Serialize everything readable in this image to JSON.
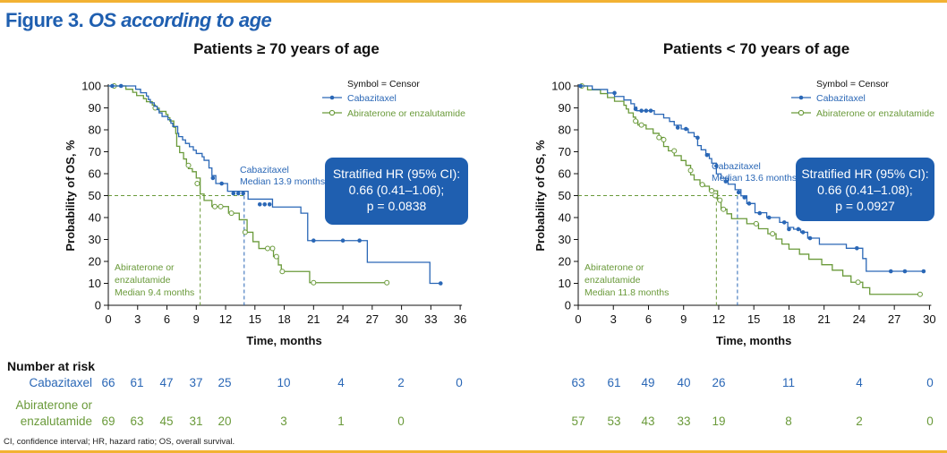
{
  "figure": {
    "label": "Figure 3.",
    "title": "OS according to age",
    "footnote": "CI, confidence interval; HR, hazard ratio; OS, overall survival."
  },
  "colors": {
    "cabazitaxel": "#2a67b6",
    "abiraterone": "#6a9a3a",
    "title": "#1f5fb0",
    "hr_box": "#1f5fb0",
    "rule": "#f2b233"
  },
  "risk_table": {
    "heading": "Number at risk",
    "row_labels": [
      "Cabazitaxel",
      "Abiraterone or",
      "enzalutamide"
    ]
  },
  "chart_data": [
    {
      "type": "line",
      "title": "Patients ≥ 70 years of age",
      "xlabel": "Time, months",
      "ylabel": "Probability of OS, %",
      "xlim": [
        0,
        36
      ],
      "ylim": [
        0,
        100
      ],
      "xticks": [
        0,
        3,
        6,
        9,
        12,
        15,
        18,
        21,
        24,
        27,
        30,
        33,
        36
      ],
      "yticks": [
        0,
        10,
        20,
        30,
        40,
        50,
        60,
        70,
        80,
        90,
        100
      ],
      "legend": {
        "title": "Symbol = Censor",
        "position": "top-right"
      },
      "series": [
        {
          "name": "Cabazitaxel",
          "steps": [
            [
              0,
              100
            ],
            [
              2.8,
              98.5
            ],
            [
              3.3,
              96.9
            ],
            [
              3.9,
              95.4
            ],
            [
              4.1,
              93.8
            ],
            [
              4.3,
              92.3
            ],
            [
              4.7,
              90.7
            ],
            [
              5.0,
              89.2
            ],
            [
              5.2,
              87.7
            ],
            [
              5.5,
              86.1
            ],
            [
              6.1,
              84.6
            ],
            [
              6.4,
              83.0
            ],
            [
              6.6,
              81.5
            ],
            [
              7.1,
              78.4
            ],
            [
              7.2,
              76.9
            ],
            [
              7.6,
              75.4
            ],
            [
              7.9,
              73.8
            ],
            [
              8.3,
              72.3
            ],
            [
              8.7,
              70.7
            ],
            [
              9.0,
              69.2
            ],
            [
              9.6,
              67.7
            ],
            [
              9.8,
              66.1
            ],
            [
              10.3,
              62.6
            ],
            [
              10.6,
              59.1
            ],
            [
              11.0,
              55.5
            ],
            [
              12.2,
              52.0
            ],
            [
              14.3,
              48.4
            ],
            [
              16.8,
              44.8
            ],
            [
              19.7,
              42.0
            ],
            [
              20.4,
              29.5
            ],
            [
              26.5,
              19.6
            ],
            [
              32.9,
              10.0
            ]
          ],
          "end": 34.0,
          "censor": [
            [
              0.4,
              100
            ],
            [
              1.3,
              100
            ],
            [
              10.7,
              58
            ],
            [
              11.6,
              55.5
            ],
            [
              12.8,
              51
            ],
            [
              13.3,
              51
            ],
            [
              13.8,
              51
            ],
            [
              15.5,
              46
            ],
            [
              16.0,
              46
            ],
            [
              16.5,
              46
            ],
            [
              21.0,
              29.5
            ],
            [
              24.0,
              29.5
            ],
            [
              25.7,
              29.5
            ],
            [
              34.0,
              10
            ]
          ],
          "median_label": [
            "Cabazitaxel",
            "Median 13.9 months"
          ],
          "median": 13.9,
          "at_risk": [
            66,
            61,
            47,
            37,
            25,
            10,
            4,
            2,
            0
          ],
          "at_risk_times": [
            0,
            3,
            6,
            9,
            12,
            18,
            24,
            30,
            36
          ]
        },
        {
          "name": "Abiraterone or enzalutamide",
          "steps": [
            [
              0,
              100
            ],
            [
              1.8,
              98.5
            ],
            [
              2.5,
              97.1
            ],
            [
              2.9,
              95.6
            ],
            [
              3.6,
              94.2
            ],
            [
              3.9,
              92.8
            ],
            [
              4.5,
              91.3
            ],
            [
              4.8,
              89.9
            ],
            [
              5.2,
              88.4
            ],
            [
              5.9,
              87.0
            ],
            [
              6.1,
              85.5
            ],
            [
              6.3,
              84.0
            ],
            [
              6.7,
              81.2
            ],
            [
              6.9,
              78.3
            ],
            [
              7.0,
              72.5
            ],
            [
              7.3,
              69.6
            ],
            [
              7.7,
              66.7
            ],
            [
              8.0,
              63.8
            ],
            [
              8.2,
              62.3
            ],
            [
              8.6,
              60.9
            ],
            [
              9.0,
              58.0
            ],
            [
              9.4,
              50.7
            ],
            [
              9.8,
              47.8
            ],
            [
              10.6,
              45.0
            ],
            [
              12.3,
              42.0
            ],
            [
              13.4,
              39.0
            ],
            [
              14.2,
              33.3
            ],
            [
              14.8,
              29.0
            ],
            [
              15.4,
              25.9
            ],
            [
              16.9,
              22.2
            ],
            [
              17.4,
              18.4
            ],
            [
              17.7,
              15.4
            ],
            [
              20.6,
              10.3
            ]
          ],
          "end": 28.5,
          "censor": [
            [
              0.6,
              100
            ],
            [
              4.8,
              90
            ],
            [
              8.2,
              63.8
            ],
            [
              9.1,
              55.5
            ],
            [
              10.9,
              45
            ],
            [
              11.5,
              45
            ],
            [
              12.6,
              42
            ],
            [
              14.0,
              33.3
            ],
            [
              16.3,
              25.9
            ],
            [
              16.8,
              25.9
            ],
            [
              17.2,
              22.2
            ],
            [
              17.8,
              15.4
            ],
            [
              21.0,
              10.3
            ],
            [
              28.5,
              10.3
            ]
          ],
          "median_label": [
            "Abiraterone or",
            "enzalutamide",
            "Median 9.4 months"
          ],
          "median": 9.4,
          "at_risk": [
            69,
            63,
            45,
            31,
            20,
            3,
            1,
            0
          ],
          "at_risk_times": [
            0,
            3,
            6,
            9,
            12,
            18,
            24,
            30
          ]
        }
      ],
      "hr_box": [
        "Stratified HR (95% CI):",
        "0.66 (0.41–1.06);",
        "p = 0.0838"
      ]
    },
    {
      "type": "line",
      "title": "Patients < 70 years of age",
      "xlabel": "Time, months",
      "ylabel": "Probability of OS, %",
      "xlim": [
        0,
        30
      ],
      "ylim": [
        0,
        100
      ],
      "xticks": [
        0,
        3,
        6,
        9,
        12,
        15,
        18,
        21,
        24,
        27,
        30
      ],
      "yticks": [
        0,
        10,
        20,
        30,
        40,
        50,
        60,
        70,
        80,
        90,
        100
      ],
      "legend": {
        "title": "Symbol = Censor",
        "position": "top-right"
      },
      "series": [
        {
          "name": "Cabazitaxel",
          "steps": [
            [
              0,
              100
            ],
            [
              1.2,
              98.4
            ],
            [
              2.5,
              96.8
            ],
            [
              3.1,
              95.2
            ],
            [
              3.9,
              93.6
            ],
            [
              4.5,
              91.9
            ],
            [
              4.8,
              90.3
            ],
            [
              5.0,
              88.7
            ],
            [
              6.5,
              87.1
            ],
            [
              7.3,
              85.4
            ],
            [
              7.8,
              83.8
            ],
            [
              8.2,
              82.1
            ],
            [
              8.8,
              80.4
            ],
            [
              9.4,
              78.7
            ],
            [
              9.9,
              76.9
            ],
            [
              10.2,
              72.8
            ],
            [
              10.5,
              70.9
            ],
            [
              10.9,
              69.0
            ],
            [
              11.2,
              66.9
            ],
            [
              11.4,
              64.8
            ],
            [
              11.8,
              59.9
            ],
            [
              12.2,
              57.9
            ],
            [
              12.8,
              55.2
            ],
            [
              13.4,
              52.7
            ],
            [
              13.9,
              49.9
            ],
            [
              14.4,
              46.4
            ],
            [
              15.1,
              42.2
            ],
            [
              16.1,
              40.0
            ],
            [
              17.2,
              37.8
            ],
            [
              17.9,
              35.5
            ],
            [
              18.4,
              34.7
            ],
            [
              19.0,
              33.3
            ],
            [
              19.6,
              30.6
            ],
            [
              20.6,
              27.8
            ],
            [
              22.9,
              26.0
            ],
            [
              24.3,
              21.3
            ],
            [
              24.6,
              15.5
            ]
          ],
          "end": 29.5,
          "censor": [
            [
              0.2,
              100
            ],
            [
              3.1,
              96.8
            ],
            [
              4.9,
              89.5
            ],
            [
              5.4,
              88.7
            ],
            [
              5.8,
              88.7
            ],
            [
              6.2,
              88.7
            ],
            [
              8.5,
              81
            ],
            [
              9.2,
              80.4
            ],
            [
              10.2,
              76.4
            ],
            [
              11.0,
              68.5
            ],
            [
              11.8,
              63.5
            ],
            [
              12.6,
              56.5
            ],
            [
              13.7,
              51.5
            ],
            [
              14.2,
              49.2
            ],
            [
              14.6,
              46.4
            ],
            [
              15.5,
              42
            ],
            [
              16.3,
              40
            ],
            [
              17.6,
              37.8
            ],
            [
              18.0,
              34.7
            ],
            [
              18.8,
              34.7
            ],
            [
              19.2,
              33.3
            ],
            [
              19.8,
              30.6
            ],
            [
              23.8,
              26
            ],
            [
              26.7,
              15.5
            ],
            [
              27.9,
              15.5
            ],
            [
              29.5,
              15.5
            ]
          ],
          "median_label": [
            "Cabazitaxel",
            "Median 13.6 months"
          ],
          "median": 13.6,
          "at_risk": [
            63,
            61,
            49,
            40,
            26,
            11,
            4,
            0
          ],
          "at_risk_times": [
            0,
            3,
            6,
            9,
            12,
            18,
            24,
            30
          ]
        },
        {
          "name": "Abiraterone or enzalutamide",
          "steps": [
            [
              0,
              100
            ],
            [
              0.8,
              98.2
            ],
            [
              1.9,
              96.5
            ],
            [
              2.5,
              94.7
            ],
            [
              3.1,
              93.0
            ],
            [
              3.9,
              91.2
            ],
            [
              4.1,
              89.5
            ],
            [
              4.3,
              87.7
            ],
            [
              4.7,
              85.8
            ],
            [
              4.9,
              84.0
            ],
            [
              5.1,
              82.2
            ],
            [
              5.8,
              80.4
            ],
            [
              6.4,
              78.4
            ],
            [
              6.9,
              76.5
            ],
            [
              7.3,
              72.4
            ],
            [
              7.7,
              70.4
            ],
            [
              8.2,
              68.2
            ],
            [
              8.8,
              66.0
            ],
            [
              9.2,
              63.8
            ],
            [
              9.6,
              59.5
            ],
            [
              9.9,
              57.2
            ],
            [
              10.4,
              55.0
            ],
            [
              10.8,
              54.3
            ],
            [
              11.2,
              52.2
            ],
            [
              11.9,
              47.9
            ],
            [
              12.2,
              43.8
            ],
            [
              12.7,
              41.7
            ],
            [
              13.1,
              39.5
            ],
            [
              14.4,
              37.2
            ],
            [
              15.4,
              34.9
            ],
            [
              16.2,
              32.6
            ],
            [
              16.9,
              30.2
            ],
            [
              17.4,
              27.9
            ],
            [
              18.0,
              25.6
            ],
            [
              18.9,
              23.3
            ],
            [
              19.7,
              21.0
            ],
            [
              20.8,
              18.5
            ],
            [
              21.7,
              16.0
            ],
            [
              22.6,
              13.4
            ],
            [
              23.3,
              10.5
            ],
            [
              24.3,
              8.0
            ],
            [
              24.9,
              5.0
            ]
          ],
          "end": 29.2,
          "censor": [
            [
              0.3,
              100
            ],
            [
              4.9,
              84
            ],
            [
              5.4,
              82.2
            ],
            [
              6.9,
              76.5
            ],
            [
              7.3,
              75.5
            ],
            [
              8.2,
              70.4
            ],
            [
              9.6,
              61.5
            ],
            [
              10.6,
              55
            ],
            [
              11.4,
              52.2
            ],
            [
              11.7,
              50
            ],
            [
              12.1,
              47.9
            ],
            [
              12.4,
              43.8
            ],
            [
              15.2,
              37.2
            ],
            [
              16.6,
              32.6
            ],
            [
              23.9,
              10.5
            ],
            [
              29.2,
              5.0
            ]
          ],
          "median_label": [
            "Abiraterone or",
            "enzalutamide",
            "Median 11.8 months"
          ],
          "median": 11.8,
          "at_risk": [
            57,
            53,
            43,
            33,
            19,
            8,
            2,
            0
          ],
          "at_risk_times": [
            0,
            3,
            6,
            9,
            12,
            18,
            24,
            30
          ]
        }
      ],
      "hr_box": [
        "Stratified HR (95% CI):",
        "0.66 (0.41–1.08);",
        "p = 0.0927"
      ]
    }
  ]
}
